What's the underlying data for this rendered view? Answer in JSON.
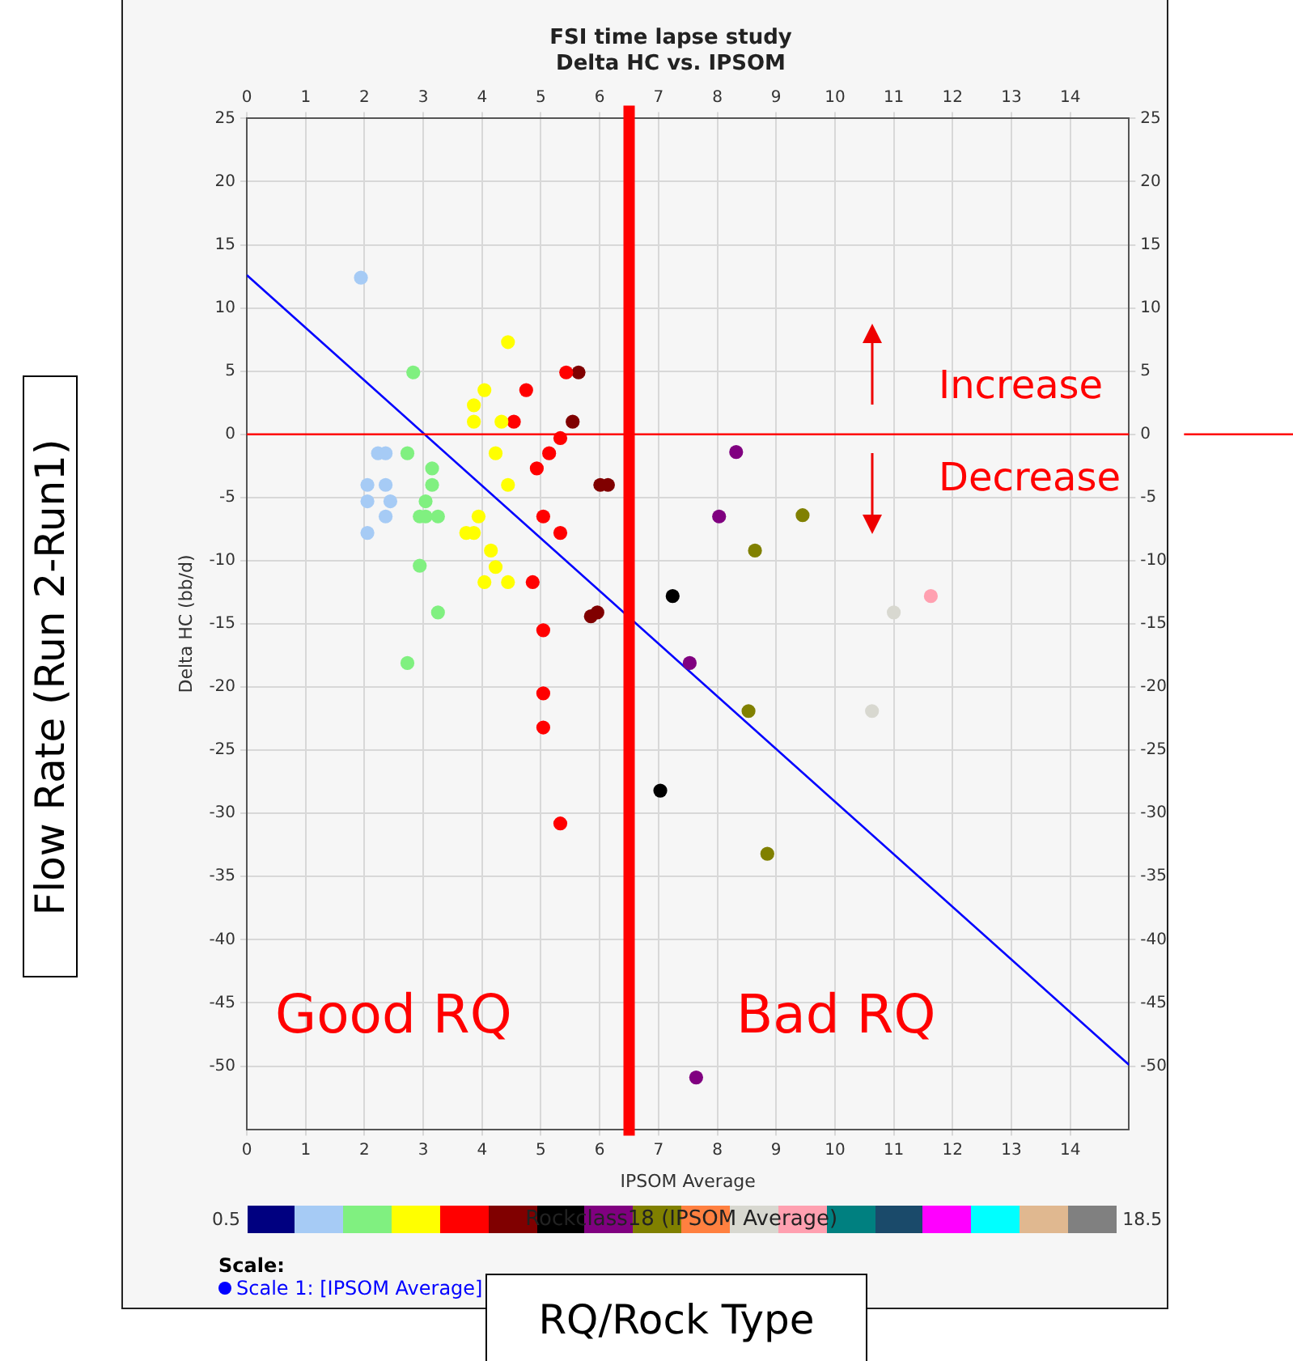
{
  "chart_data": {
    "type": "scatter",
    "title": "FSI time lapse study",
    "subtitle": "Delta HC vs. IPSOM",
    "xlabel": "IPSOM Average",
    "ylabel": "Delta HC (bb/d)",
    "clabel": "Rockclass18 (IPSOM Average)",
    "legend_title": "Scale:",
    "legend": "bottom left",
    "marker": "circle",
    "grid": true,
    "xlim": [
      0,
      15
    ],
    "xticks": [
      0,
      1,
      2,
      3,
      4,
      5,
      6,
      7,
      8,
      9,
      10,
      11,
      12,
      13,
      14
    ],
    "x2lim": [
      0,
      15
    ],
    "x2ticks": [
      0,
      1,
      2,
      3,
      4,
      5,
      6,
      7,
      8,
      9,
      10,
      11,
      12,
      13,
      14
    ],
    "ylim": [
      -55,
      25
    ],
    "yticks": [
      -50,
      -45,
      -40,
      -35,
      -30,
      -25,
      -20,
      -15,
      -10,
      -5,
      0,
      5,
      10,
      15,
      20,
      25
    ],
    "y2lim": [
      -55,
      25
    ],
    "y2ticks": [
      -50,
      -45,
      -40,
      -35,
      -30,
      -25,
      -20,
      -15,
      -10,
      -5,
      0,
      5,
      10,
      15,
      20,
      25
    ],
    "series": [
      {
        "color": "#a6cbf5",
        "x": [
          1.94,
          2.23,
          2.36,
          2.05,
          2.36,
          2.05,
          2.44,
          2.36,
          2.05
        ],
        "values": [
          12.4,
          -1.5,
          -1.5,
          -4,
          -4,
          -5.3,
          -5.3,
          -6.5,
          -7.8
        ]
      },
      {
        "color": "#80f080",
        "x": [
          2.83,
          2.73,
          3.15,
          3.15,
          3.04,
          2.94,
          3.04,
          3.25,
          2.94,
          3.25,
          2.73
        ],
        "values": [
          4.9,
          -1.5,
          -2.7,
          -4,
          -5.3,
          -6.5,
          -6.5,
          -6.5,
          -10.4,
          -14.1,
          -18.1
        ]
      },
      {
        "color": "#ffff00",
        "x": [
          4.44,
          4.04,
          3.86,
          3.86,
          4.33,
          4.23,
          4.44,
          3.94,
          3.73,
          3.86,
          4.15,
          4.23,
          4.04,
          4.44
        ],
        "values": [
          7.3,
          3.5,
          2.3,
          1.0,
          1.0,
          -1.5,
          -4,
          -6.5,
          -7.8,
          -7.8,
          -9.2,
          -10.5,
          -11.7,
          -11.7
        ]
      },
      {
        "color": "#ff0000",
        "x": [
          5.43,
          4.75,
          4.54,
          5.33,
          5.14,
          4.93,
          5.04,
          5.33,
          4.86,
          5.04,
          5.04,
          5.04,
          5.33
        ],
        "values": [
          4.9,
          3.5,
          1.0,
          -0.3,
          -1.5,
          -2.7,
          -6.5,
          -7.8,
          -11.7,
          -15.5,
          -20.5,
          -23.2,
          -30.8
        ]
      },
      {
        "color": "#800000",
        "x": [
          5.64,
          5.54,
          6.01,
          6.14,
          5.85,
          5.96
        ],
        "values": [
          4.9,
          1.0,
          -4,
          -4,
          -14.4,
          -14.1
        ]
      },
      {
        "color": "#000000",
        "x": [
          7.24,
          7.03
        ],
        "values": [
          -12.8,
          -28.2
        ]
      },
      {
        "color": "#800080",
        "x": [
          8.32,
          8.03,
          7.53,
          7.64
        ],
        "values": [
          -1.4,
          -6.5,
          -18.1,
          -50.9
        ]
      },
      {
        "color": "#808000",
        "x": [
          9.45,
          8.64,
          8.53,
          8.85
        ],
        "values": [
          -6.4,
          -9.2,
          -21.9,
          -33.2
        ]
      },
      {
        "color": "#d8d8d0",
        "x": [
          11.0,
          10.63
        ],
        "values": [
          -14.1,
          -21.9
        ]
      },
      {
        "color": "#ffa0b0",
        "x": [
          11.63
        ],
        "values": [
          -12.8
        ]
      },
      {
        "type": "line",
        "marker": "none",
        "name": "Scale 1:  [IPSOM Average]",
        "color": "#0000ff",
        "x": [
          0,
          15
        ],
        "values": [
          12.6,
          -49.9
        ]
      }
    ],
    "ref_lines": [
      {
        "axis": "x",
        "value": 6.5,
        "color": "#ff0000"
      },
      {
        "axis": "y",
        "value": 0,
        "color": "#ff0000"
      }
    ],
    "annotations": [
      "Good RQ",
      "Bad RQ",
      "Increase",
      "Decrease",
      "Flow Rate (Run 2-Run1)",
      "RQ/Rock Type",
      "0.5",
      "18.5"
    ]
  }
}
